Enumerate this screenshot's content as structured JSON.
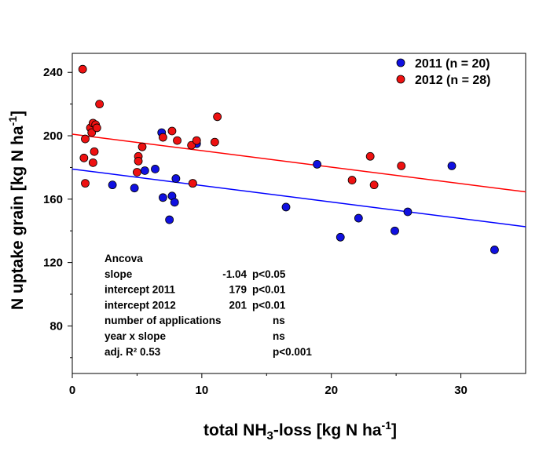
{
  "chart_data": {
    "type": "scatter",
    "title": "",
    "xlabel": {
      "main": "total NH",
      "sub": "3",
      "rest": "-loss [kg N ha",
      "sup": "-1",
      "end": "]"
    },
    "ylabel": {
      "main": "N uptake grain [kg N ha",
      "sup": "-1",
      "end": "]"
    },
    "xlim": [
      0,
      35
    ],
    "ylim": [
      50,
      252
    ],
    "xticks": [
      0,
      10,
      20,
      30
    ],
    "yticks": [
      80,
      120,
      160,
      200,
      240
    ],
    "xtick_labels": [
      "0",
      "10",
      "20",
      "30"
    ],
    "ytick_labels": [
      "80",
      "120",
      "160",
      "200",
      "240"
    ],
    "legend_position": "top-right",
    "series": [
      {
        "name": "2011 (n = 20)",
        "color": "#1010e0",
        "line_color": "#0000ff",
        "fit": {
          "intercept": 179,
          "slope": -1.04
        },
        "points": [
          [
            3.1,
            169
          ],
          [
            4.8,
            167
          ],
          [
            5.6,
            178
          ],
          [
            6.4,
            179
          ],
          [
            6.9,
            202
          ],
          [
            7.0,
            161
          ],
          [
            7.5,
            147
          ],
          [
            7.7,
            162
          ],
          [
            7.9,
            158
          ],
          [
            8.0,
            173
          ],
          [
            9.3,
            170
          ],
          [
            9.6,
            195
          ],
          [
            16.5,
            155
          ],
          [
            18.9,
            182
          ],
          [
            20.7,
            136
          ],
          [
            22.1,
            148
          ],
          [
            24.9,
            140
          ],
          [
            25.9,
            152
          ],
          [
            29.3,
            181
          ],
          [
            32.6,
            128
          ]
        ]
      },
      {
        "name": "2012 (n = 28)",
        "color": "#ee1111",
        "line_color": "#ff0000",
        "fit": {
          "intercept": 201,
          "slope": -1.04
        },
        "points": [
          [
            0.8,
            242
          ],
          [
            0.9,
            186
          ],
          [
            1.0,
            198
          ],
          [
            1.0,
            170
          ],
          [
            1.4,
            205
          ],
          [
            1.5,
            202
          ],
          [
            1.6,
            208
          ],
          [
            1.6,
            183
          ],
          [
            1.7,
            190
          ],
          [
            1.8,
            207
          ],
          [
            1.9,
            205
          ],
          [
            2.1,
            220
          ],
          [
            5.0,
            177
          ],
          [
            5.1,
            187
          ],
          [
            5.1,
            184
          ],
          [
            5.4,
            193
          ],
          [
            7.0,
            199
          ],
          [
            7.7,
            203
          ],
          [
            8.1,
            197
          ],
          [
            9.2,
            194
          ],
          [
            9.3,
            170
          ],
          [
            9.6,
            197
          ],
          [
            11.0,
            196
          ],
          [
            11.2,
            212
          ],
          [
            21.6,
            172
          ],
          [
            23.0,
            187
          ],
          [
            23.3,
            169
          ],
          [
            25.4,
            181
          ]
        ]
      }
    ],
    "annotation": [
      {
        "label": "Ancova",
        "value": "",
        "p": ""
      },
      {
        "label": "slope",
        "value": "-1.04",
        "p": "p<0.05"
      },
      {
        "label": "intercept 2011",
        "value": "179",
        "p": "p<0.01"
      },
      {
        "label": "intercept 2012",
        "value": "201",
        "p": "p<0.01"
      },
      {
        "label": "number of applications",
        "value": "",
        "p": "ns"
      },
      {
        "label": "year x slope",
        "value": "",
        "p": "ns"
      },
      {
        "label": "adj. R² 0.53",
        "value": "",
        "p": "p<0.001"
      }
    ]
  }
}
